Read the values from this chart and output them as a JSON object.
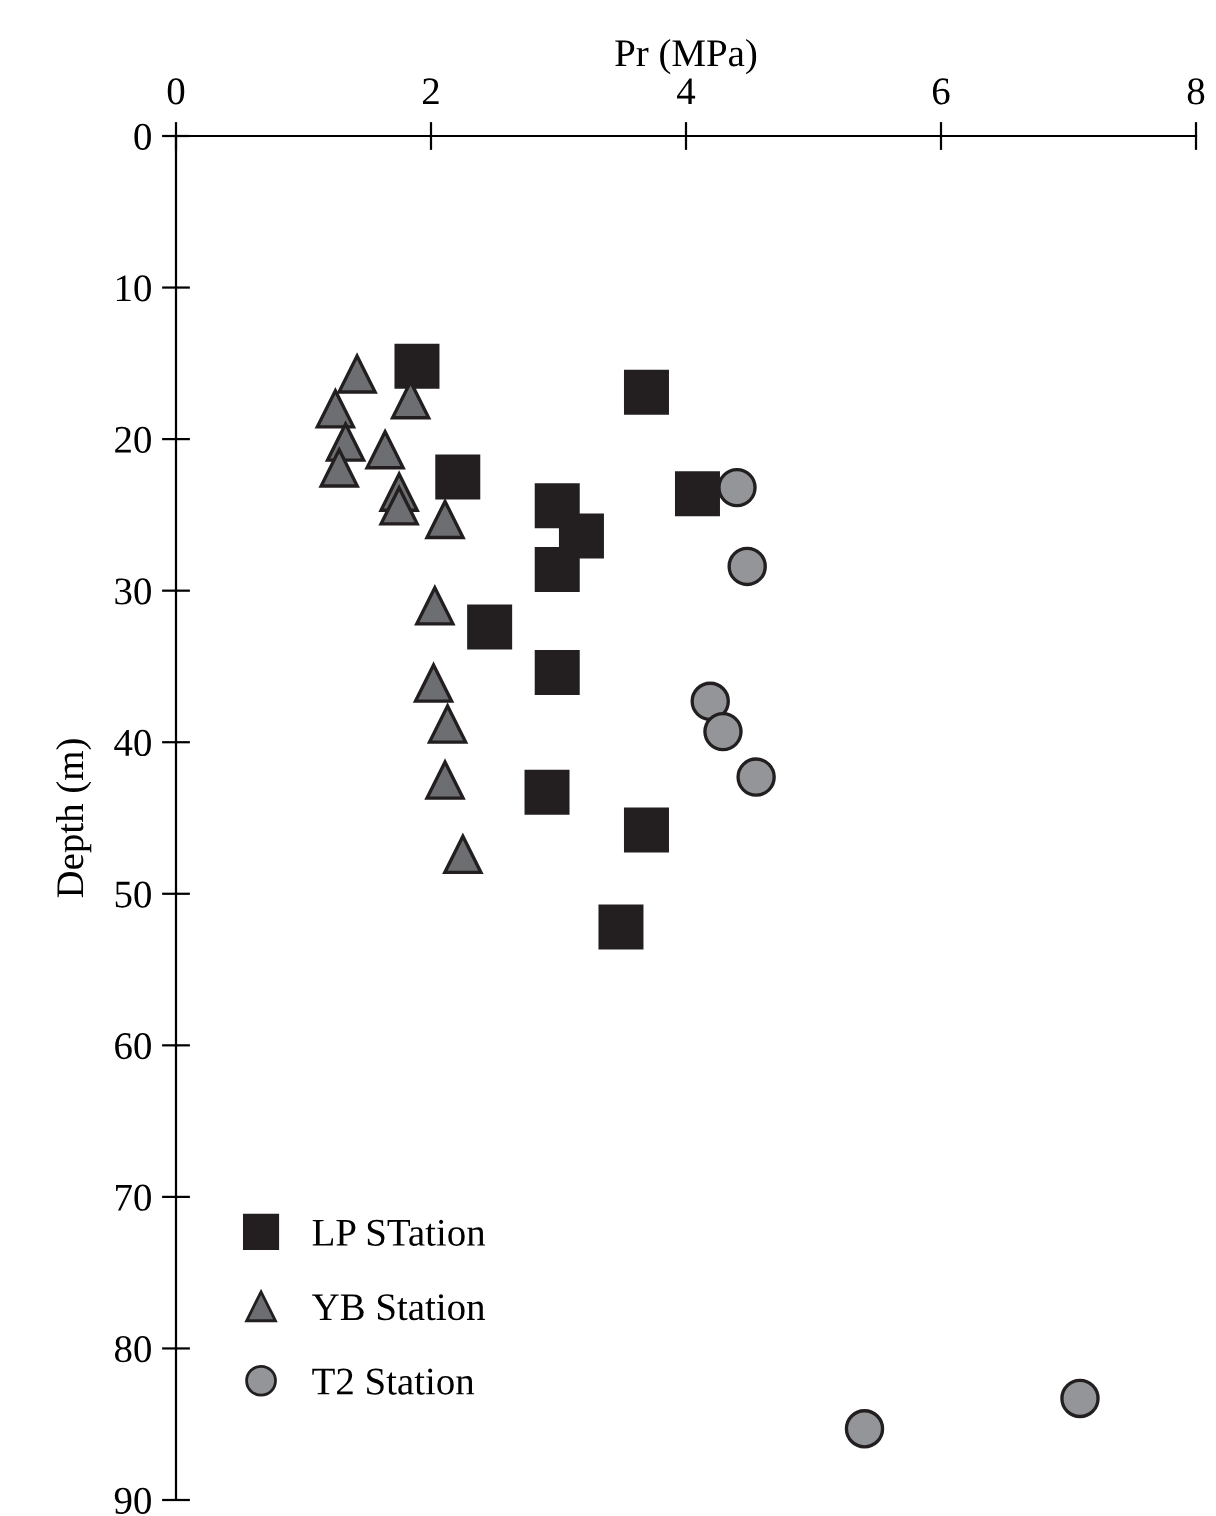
{
  "chart_data": {
    "type": "scatter",
    "xlabel": "Pr (MPa)",
    "ylabel": "Depth (m)",
    "xlim": [
      0,
      8
    ],
    "xticks": [
      0,
      2,
      4,
      6,
      8
    ],
    "ylim": [
      90,
      0
    ],
    "yticks": [
      0,
      10,
      20,
      30,
      40,
      50,
      60,
      70,
      80,
      90
    ],
    "grid": false,
    "legend": "bottom left",
    "series": [
      {
        "name": "LP STation",
        "color": "#231f20",
        "marker": "square",
        "x": [
          1.89,
          3.69,
          2.21,
          2.99,
          3.18,
          2.99,
          4.09,
          2.46,
          2.99,
          2.91,
          3.69,
          3.49
        ],
        "values": [
          15.2,
          16.9,
          22.5,
          24.4,
          26.4,
          28.6,
          23.6,
          32.4,
          35.4,
          43.3,
          45.8,
          52.2
        ]
      },
      {
        "name": "YB Station",
        "color": "#6d6e71",
        "marker": "triangle",
        "x": [
          1.42,
          1.84,
          1.25,
          1.33,
          1.64,
          1.28,
          1.75,
          1.75,
          2.11,
          2.03,
          2.02,
          2.13,
          2.11,
          2.25
        ],
        "values": [
          15.7,
          17.4,
          18.0,
          20.2,
          20.7,
          21.9,
          23.5,
          24.4,
          25.3,
          31.0,
          36.1,
          38.8,
          42.5,
          47.4
        ]
      },
      {
        "name": "T2 Station",
        "color": "#939598",
        "marker": "circle",
        "x": [
          4.4,
          4.48,
          4.19,
          4.29,
          4.55,
          5.4,
          7.09
        ],
        "values": [
          23.2,
          28.4,
          37.3,
          39.3,
          42.3,
          85.3,
          83.3
        ]
      }
    ]
  }
}
